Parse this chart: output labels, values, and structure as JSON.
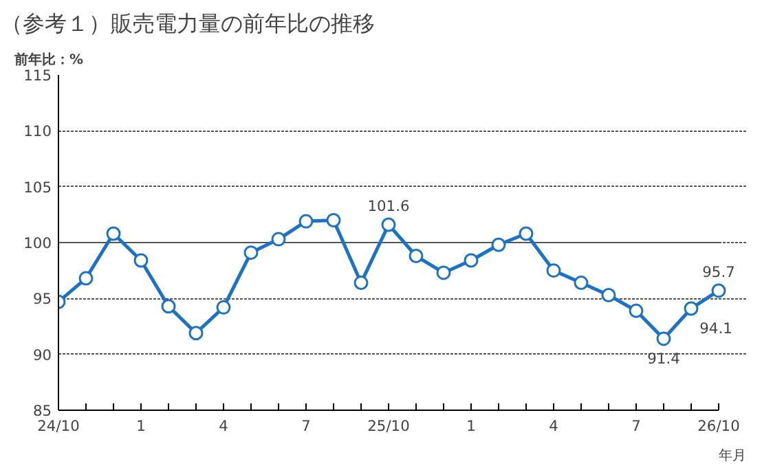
{
  "chart_data": {
    "type": "line",
    "title": "（参考１）販売電力量の前年比の推移",
    "ylabel": "前年比：%",
    "xlabel": "年月",
    "categories": [
      "24/10",
      null,
      null,
      "1",
      null,
      null,
      "4",
      null,
      null,
      "7",
      null,
      null,
      "25/10",
      null,
      null,
      "1",
      null,
      null,
      "4",
      null,
      null,
      "7",
      null,
      null,
      "26/10"
    ],
    "series": [
      {
        "color": "#1c72c4",
        "values": [
          94.7,
          96.8,
          100.8,
          98.4,
          94.3,
          91.9,
          94.2,
          99.1,
          100.3,
          101.9,
          102.0,
          96.4,
          101.6,
          98.8,
          97.3,
          98.4,
          99.8,
          100.8,
          97.5,
          96.4,
          95.3,
          93.9,
          91.4,
          94.1,
          95.7
        ],
        "value_labels": [
          null,
          null,
          null,
          null,
          null,
          null,
          null,
          null,
          null,
          null,
          null,
          null,
          "101.6",
          null,
          null,
          null,
          null,
          null,
          null,
          null,
          null,
          null,
          "91.4",
          "94.1",
          "95.7"
        ]
      }
    ],
    "ylim": [
      85,
      115
    ],
    "yticks": [
      85,
      90,
      95,
      100,
      105,
      110,
      115
    ],
    "grid": "y",
    "marker": "circle",
    "line_style": "solid",
    "ref_lines": [
      {
        "axis": "y",
        "value": 100,
        "color": "#555555",
        "line_style": "solid"
      }
    ]
  }
}
